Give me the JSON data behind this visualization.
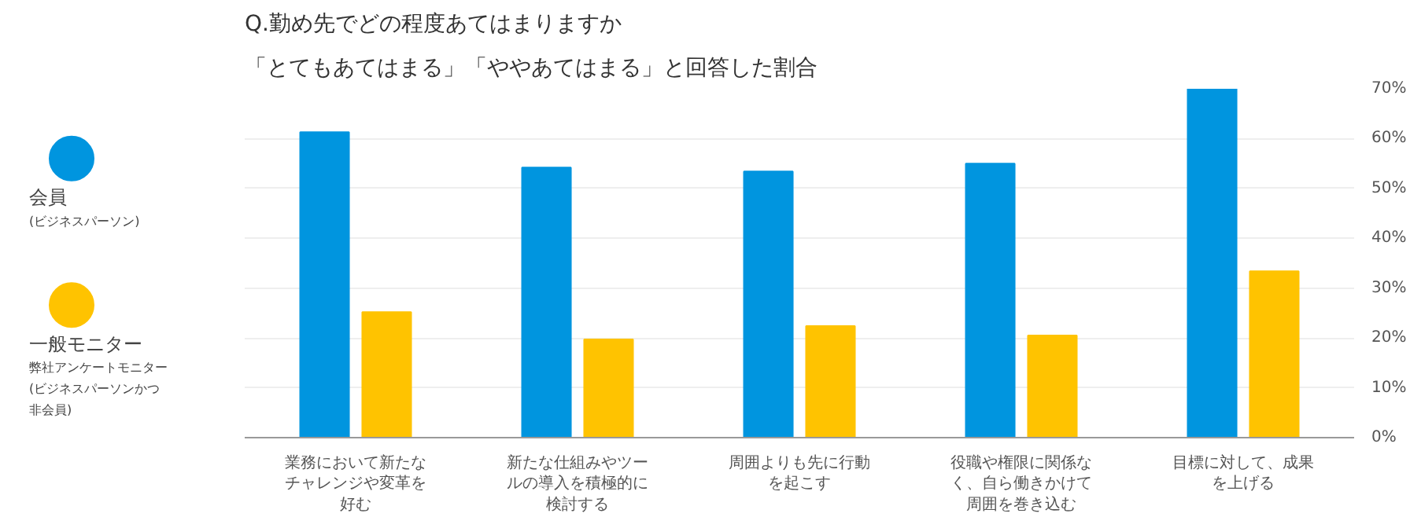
{
  "chart_data": {
    "type": "bar",
    "title": "Q.勤め先でどの程度あてはまりますか",
    "subtitle": "「とてもあてはまる」「ややあてはまる」と回答した割合",
    "categories": [
      "業務において新たなチャレンジや変革を好む",
      "新たな仕組みやツールの導入を積極的に検討する",
      "周囲よりも先に行動を起こす",
      "役職や権限に関係なく、自ら働きかけて周囲を巻き込む",
      "目標に対して、成果を上げる"
    ],
    "series": [
      {
        "name": "会員",
        "color": "#0095df",
        "values": [
          61.3,
          54.2,
          53.4,
          55.0,
          70.0
        ]
      },
      {
        "name": "一般モニター",
        "color": "#ffc300",
        "values": [
          25.2,
          19.7,
          22.4,
          20.5,
          33.4
        ]
      }
    ],
    "annotations": [
      "(ビジネスパーソン)",
      "弊社アンケートモニター(ビジネスパーソンかつ非会員)"
    ],
    "ylim": [
      0,
      70
    ],
    "yticks": [
      {
        "value": 0,
        "label": "0%"
      },
      {
        "value": 10,
        "label": "10%"
      },
      {
        "value": 20,
        "label": "20%"
      },
      {
        "value": 30,
        "label": "30%"
      },
      {
        "value": 40,
        "label": "40%"
      },
      {
        "value": 50,
        "label": "50%"
      },
      {
        "value": 60,
        "label": "60%"
      },
      {
        "value": 70,
        "label": "70%"
      }
    ],
    "grid": "y",
    "legend": "left"
  }
}
